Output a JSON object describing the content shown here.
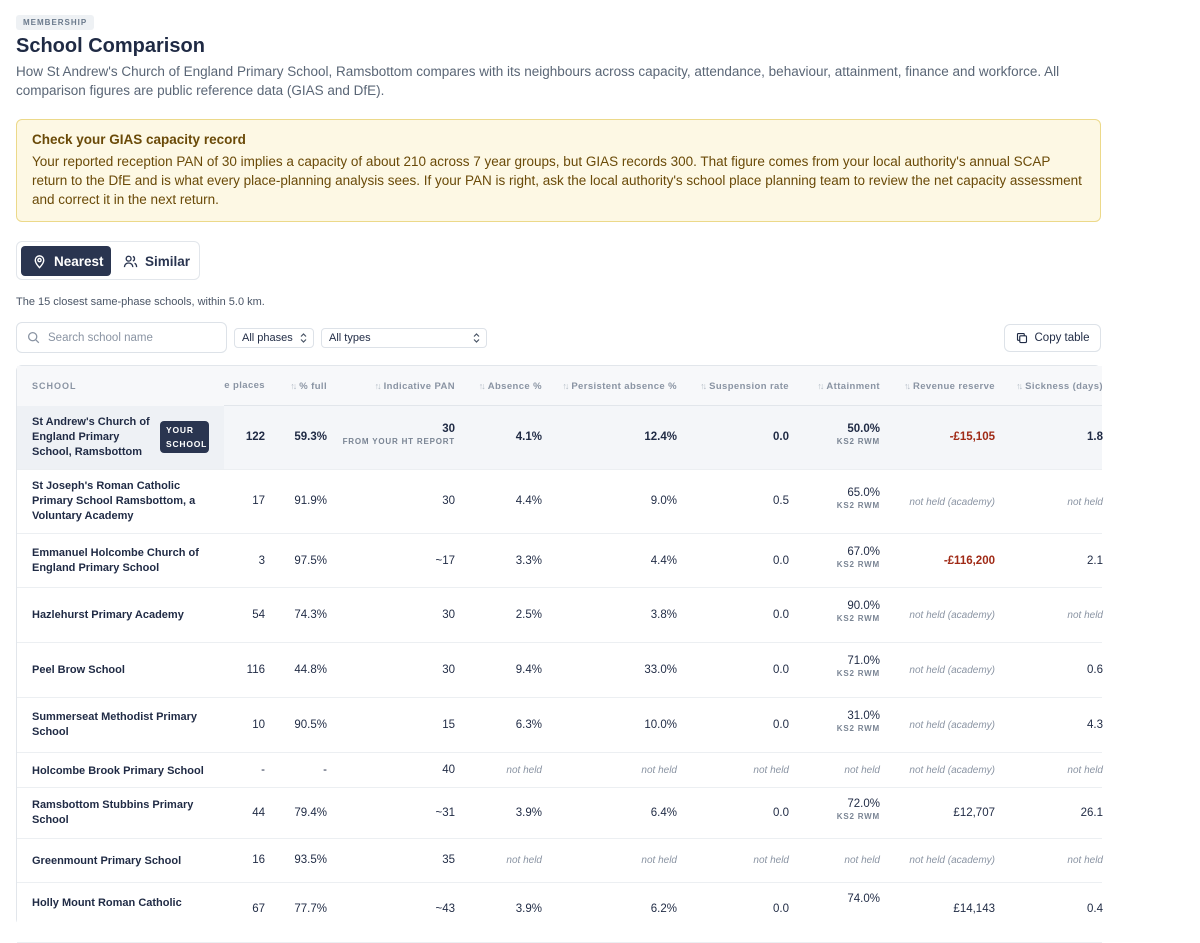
{
  "badge": "MEMBERSHIP",
  "title": "School Comparison",
  "subtitle": "How St Andrew's Church of England Primary School, Ramsbottom compares with its neighbours across capacity, attendance, behaviour, attainment, finance and workforce. All comparison figures are public reference data (GIAS and DfE).",
  "alert": {
    "title": "Check your GIAS capacity record",
    "body": "Your reported reception PAN of 30 implies a capacity of about 210 across 7 year groups, but GIAS records 300. That figure comes from your local authority's annual SCAP return to the DfE and is what every place-planning analysis sees. If your PAN is right, ask the local authority's school place planning team to review the net capacity assessment and correct it in the next return."
  },
  "toggle": {
    "nearest": "Nearest",
    "similar": "Similar"
  },
  "nearest_description": "The 15 closest same-phase schools, within 5.0 km.",
  "search": {
    "placeholder": "Search school name"
  },
  "filters": {
    "phases": "All phases",
    "types": "All types"
  },
  "copy_label": "Copy table",
  "columns": {
    "school": "SCHOOL",
    "spare": "e places",
    "full": "% full",
    "pan": "Indicative PAN",
    "absence": "Absence %",
    "persistent": "Persistent absence %",
    "suspension": "Suspension rate",
    "attainment": "Attainment",
    "reserve": "Revenue reserve",
    "sickness": "Sickness (days)"
  },
  "your_school_label": "YOUR SCHOOL",
  "rows": [
    {
      "name": "St Andrew's Church of England Primary School, Ramsbottom",
      "spare": "122",
      "full": "59.3%",
      "pan": "30",
      "pan_note": "FROM YOUR HT REPORT",
      "absence": "4.1%",
      "persistent": "12.4%",
      "suspension": "0.0",
      "attainment": "50.0%",
      "att_note": "KS2 RWM",
      "reserve": "-£15,105",
      "sickness": "1.8"
    },
    {
      "name": "St Joseph's Roman Catholic Primary School Ramsbottom, a Voluntary Academy",
      "spare": "17",
      "full": "91.9%",
      "pan": "30",
      "absence": "4.4%",
      "persistent": "9.0%",
      "suspension": "0.5",
      "attainment": "65.0%",
      "att_note": "KS2 RWM",
      "reserve": "not held (academy)",
      "sickness": "not held"
    },
    {
      "name": "Emmanuel Holcombe Church of England Primary School",
      "spare": "3",
      "full": "97.5%",
      "pan": "~17",
      "absence": "3.3%",
      "persistent": "4.4%",
      "suspension": "0.0",
      "attainment": "67.0%",
      "att_note": "KS2 RWM",
      "reserve": "-£116,200",
      "sickness": "2.1"
    },
    {
      "name": "Hazlehurst Primary Academy",
      "spare": "54",
      "full": "74.3%",
      "pan": "30",
      "absence": "2.5%",
      "persistent": "3.8%",
      "suspension": "0.0",
      "attainment": "90.0%",
      "att_note": "KS2 RWM",
      "reserve": "not held (academy)",
      "sickness": "not held"
    },
    {
      "name": "Peel Brow School",
      "spare": "116",
      "full": "44.8%",
      "pan": "30",
      "absence": "9.4%",
      "persistent": "33.0%",
      "suspension": "0.0",
      "attainment": "71.0%",
      "att_note": "KS2 RWM",
      "reserve": "not held (academy)",
      "sickness": "0.6"
    },
    {
      "name": "Summerseat Methodist Primary School",
      "spare": "10",
      "full": "90.5%",
      "pan": "15",
      "absence": "6.3%",
      "persistent": "10.0%",
      "suspension": "0.0",
      "attainment": "31.0%",
      "att_note": "KS2 RWM",
      "reserve": "not held (academy)",
      "sickness": "4.3"
    },
    {
      "name": "Holcombe Brook Primary School",
      "spare": "-",
      "full": "-",
      "pan": "40",
      "absence": "not held",
      "persistent": "not held",
      "suspension": "not held",
      "attainment": "not held",
      "reserve": "not held (academy)",
      "sickness": "not held"
    },
    {
      "name": "Ramsbottom Stubbins Primary School",
      "spare": "44",
      "full": "79.4%",
      "pan": "~31",
      "absence": "3.9%",
      "persistent": "6.4%",
      "suspension": "0.0",
      "attainment": "72.0%",
      "att_note": "KS2 RWM",
      "reserve": "£12,707",
      "sickness": "26.1"
    },
    {
      "name": "Greenmount Primary School",
      "spare": "16",
      "full": "93.5%",
      "pan": "35",
      "absence": "not held",
      "persistent": "not held",
      "suspension": "not held",
      "attainment": "not held",
      "reserve": "not held (academy)",
      "sickness": "not held"
    },
    {
      "name": "Holly Mount Roman Catholic",
      "spare": "67",
      "full": "77.7%",
      "pan": "~43",
      "absence": "3.9%",
      "persistent": "6.2%",
      "suspension": "0.0",
      "attainment": "74.0%",
      "att_note": "",
      "reserve": "£14,143",
      "sickness": "0.4"
    }
  ]
}
